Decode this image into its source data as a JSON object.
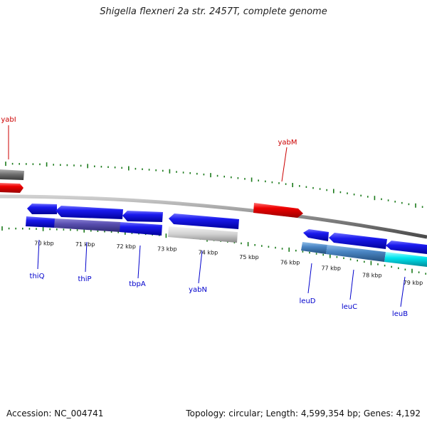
{
  "title": "Shigella flexneri 2a str. 2457T, complete genome",
  "footer": {
    "accession_label": "Accession:",
    "accession_value": "NC_004741",
    "topology_label": "Topology:",
    "topology_value": "circular",
    "length_label": "Length:",
    "length_value": "4,599,354 bp",
    "genes_label": "Genes:",
    "genes_value": "4,192"
  },
  "colors": {
    "backbone": "#888888",
    "forward_label": "#cc0000",
    "reverse_label": "#0000cc",
    "tick": "#1a7a1a",
    "gene_forward_red": "#ee0000",
    "gene_reverse_blue": "#1a1aee",
    "gene_grey": "#cccccc",
    "gene_steel": "#4a86c4",
    "gene_cyan": "#00e5ee"
  },
  "scale": {
    "labels": [
      "70 kbp",
      "71 kbp",
      "72 kbp",
      "73 kbp",
      "74 kbp",
      "75 kbp",
      "76 kbp",
      "77 kbp",
      "78 kbp",
      "79 kbp"
    ]
  },
  "gene_labels": {
    "forward": [
      "yabI",
      "yabM"
    ],
    "reverse": [
      "thiQ",
      "thiP",
      "tbpA",
      "yabN",
      "leuD",
      "leuC",
      "leuB"
    ]
  }
}
